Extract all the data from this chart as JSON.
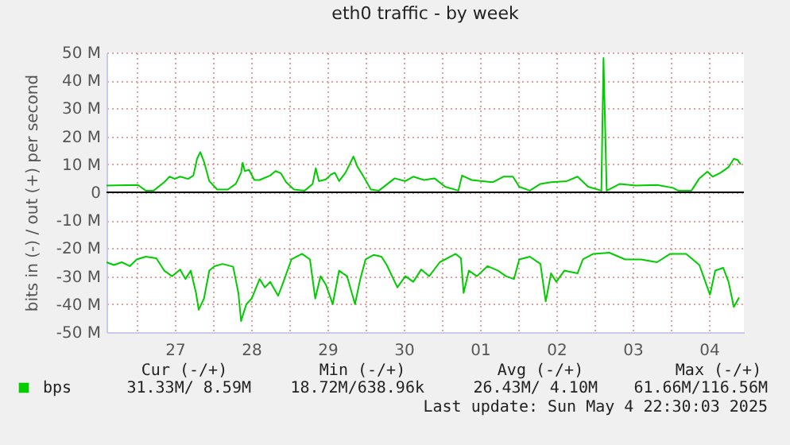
{
  "chart_data": {
    "type": "line",
    "title": "eth0 traffic - by week",
    "ylabel": "bits in (-) / out (+) per second",
    "xlim": [
      "2025-04-26T14:30",
      "2025-05-04T23:00"
    ],
    "xticks": [
      {
        "value": "2025-04-27",
        "label": null
      },
      {
        "value": "2025-04-27T12:00",
        "label": "27"
      },
      {
        "value": "2025-04-28",
        "label": null
      },
      {
        "value": "2025-04-28T12:00",
        "label": "28"
      },
      {
        "value": "2025-04-29",
        "label": null
      },
      {
        "value": "2025-04-29T12:00",
        "label": "29"
      },
      {
        "value": "2025-04-30",
        "label": null
      },
      {
        "value": "2025-04-30T12:00",
        "label": "30"
      },
      {
        "value": "2025-05-01",
        "label": null
      },
      {
        "value": "2025-05-01T12:00",
        "label": "01"
      },
      {
        "value": "2025-05-02",
        "label": null
      },
      {
        "value": "2025-05-02T12:00",
        "label": "02"
      },
      {
        "value": "2025-05-03",
        "label": null
      },
      {
        "value": "2025-05-03T12:00",
        "label": "03"
      },
      {
        "value": "2025-05-04",
        "label": null
      },
      {
        "value": "2025-05-04T12:00",
        "label": "04"
      }
    ],
    "ylim": [
      -50000000,
      50000000
    ],
    "yticks": [
      {
        "value": 50000000,
        "label": "50 M"
      },
      {
        "value": 40000000,
        "label": "40 M"
      },
      {
        "value": 30000000,
        "label": "30 M"
      },
      {
        "value": 20000000,
        "label": "20 M"
      },
      {
        "value": 10000000,
        "label": "10 M"
      },
      {
        "value": 0,
        "label": "0"
      },
      {
        "value": -10000000,
        "label": "-10 M"
      },
      {
        "value": -20000000,
        "label": "-20 M"
      },
      {
        "value": -30000000,
        "label": "-30 M"
      },
      {
        "value": -40000000,
        "label": "-40 M"
      },
      {
        "value": -50000000,
        "label": "-50 M"
      }
    ],
    "grid": true,
    "legend": "bottom left",
    "line_style": "solid",
    "ref_lines": [
      {
        "axis": "y",
        "value": 0,
        "color": "#000000"
      }
    ],
    "series": [
      {
        "name": "bps",
        "color": "#00cc00",
        "x": [
          "2025-04-26T14:30",
          "2025-04-27T00:20",
          "2025-04-27T01:10",
          "2025-04-27T02:50",
          "2025-04-27T05:20",
          "2025-04-27T08:40",
          "2025-04-27T10:20",
          "2025-04-27T12:00",
          "2025-04-27T13:40",
          "2025-04-27T16:10",
          "2025-04-27T17:50",
          "2025-04-27T19:00",
          "2025-04-27T20:00",
          "2025-04-27T21:10",
          "2025-04-27T22:50",
          "2025-04-28T01:20",
          "2025-04-28T04:40",
          "2025-04-28T07:10",
          "2025-04-28T08:50",
          "2025-04-28T09:20",
          "2025-04-28T10:00",
          "2025-04-28T11:20",
          "2025-04-28T13:00",
          "2025-04-28T14:40",
          "2025-04-28T18:00",
          "2025-04-28T19:40",
          "2025-04-28T21:20",
          "2025-04-28T23:00",
          "2025-04-29T01:30",
          "2025-04-29T04:50",
          "2025-04-29T07:20",
          "2025-04-29T08:20",
          "2025-04-29T09:20",
          "2025-04-29T11:30",
          "2025-04-29T13:10",
          "2025-04-29T14:20",
          "2025-04-29T15:40",
          "2025-04-29T17:40",
          "2025-04-29T19:00",
          "2025-04-29T20:10",
          "2025-04-29T21:30",
          "2025-04-29T23:10",
          "2025-04-30T01:40",
          "2025-04-30T04:10",
          "2025-04-30T09:10",
          "2025-04-30T12:30",
          "2025-04-30T15:00",
          "2025-04-30T18:20",
          "2025-04-30T21:40",
          "2025-05-01T01:00",
          "2025-05-01T05:10",
          "2025-05-01T06:20",
          "2025-05-01T09:20",
          "2025-05-01T12:40",
          "2025-05-01T16:00",
          "2025-05-01T19:20",
          "2025-05-01T22:20",
          "2025-05-02T00:20",
          "2025-05-02T03:40",
          "2025-05-02T07:00",
          "2025-05-02T10:20",
          "2025-05-02T15:20",
          "2025-05-02T18:40",
          "2025-05-02T22:00",
          "2025-05-03T02:10",
          "2025-05-03T02:50",
          "2025-05-03T03:50",
          "2025-05-03T08:00",
          "2025-05-03T13:00",
          "2025-05-03T19:40",
          "2025-05-04T00:40",
          "2025-05-04T02:20",
          "2025-05-04T06:30",
          "2025-05-04T09:00",
          "2025-05-04T11:30",
          "2025-05-04T13:10",
          "2025-05-04T15:40",
          "2025-05-04T18:10",
          "2025-05-04T19:50",
          "2025-05-04T21:00",
          "2025-05-04T22:00"
        ],
        "values": [
          2400000,
          2600000,
          2000000,
          600000,
          600000,
          3600000,
          5600000,
          4800000,
          5600000,
          4800000,
          6000000,
          12000000,
          14400000,
          11000000,
          4000000,
          1000000,
          1000000,
          3000000,
          7000000,
          10600000,
          7600000,
          8000000,
          4400000,
          4400000,
          6000000,
          7600000,
          6800000,
          3600000,
          1000000,
          600000,
          3000000,
          8600000,
          4000000,
          4600000,
          6400000,
          7000000,
          4000000,
          7000000,
          10000000,
          12800000,
          9000000,
          6000000,
          1000000,
          600000,
          5000000,
          4000000,
          5600000,
          4400000,
          5000000,
          2000000,
          600000,
          6000000,
          4400000,
          4000000,
          3600000,
          5600000,
          5600000,
          2000000,
          600000,
          3000000,
          3600000,
          4000000,
          5600000,
          2000000,
          600000,
          48000000,
          600000,
          3000000,
          2400000,
          2600000,
          1600000,
          600000,
          600000,
          5000000,
          7400000,
          5600000,
          7000000,
          9000000,
          12000000,
          11600000,
          10000000
        ]
      },
      {
        "color": "#00cc00",
        "x": [
          "2025-04-26T14:30",
          "2025-04-26T16:50",
          "2025-04-26T19:20",
          "2025-04-26T21:50",
          "2025-04-27T00:00",
          "2025-04-27T02:50",
          "2025-04-27T06:10",
          "2025-04-27T08:40",
          "2025-04-27T11:10",
          "2025-04-27T13:40",
          "2025-04-27T15:20",
          "2025-04-27T17:00",
          "2025-04-27T18:40",
          "2025-04-27T19:30",
          "2025-04-27T21:10",
          "2025-04-27T22:50",
          "2025-04-28T00:30",
          "2025-04-28T03:00",
          "2025-04-28T06:20",
          "2025-04-28T08:00",
          "2025-04-28T08:50",
          "2025-04-28T10:30",
          "2025-04-28T12:10",
          "2025-04-28T14:40",
          "2025-04-28T16:20",
          "2025-04-28T18:00",
          "2025-04-28T20:30",
          "2025-04-28T22:10",
          "2025-04-29T00:40",
          "2025-04-29T02:20",
          "2025-04-29T04:00",
          "2025-04-29T06:30",
          "2025-04-29T08:10",
          "2025-04-29T09:50",
          "2025-04-29T11:30",
          "2025-04-29T13:40",
          "2025-04-29T15:40",
          "2025-04-29T18:10",
          "2025-04-29T20:40",
          "2025-04-29T22:20",
          "2025-04-30T00:00",
          "2025-04-30T02:30",
          "2025-04-30T05:00",
          "2025-04-30T06:40",
          "2025-04-30T10:00",
          "2025-04-30T12:30",
          "2025-04-30T15:00",
          "2025-04-30T17:30",
          "2025-04-30T20:00",
          "2025-04-30T23:20",
          "2025-05-01T04:20",
          "2025-05-01T06:00",
          "2025-05-01T06:50",
          "2025-05-01T08:30",
          "2025-05-01T11:00",
          "2025-05-01T14:20",
          "2025-05-01T17:40",
          "2025-05-01T20:10",
          "2025-05-01T22:40",
          "2025-05-02T00:20",
          "2025-05-02T03:40",
          "2025-05-02T07:00",
          "2025-05-02T08:40",
          "2025-05-02T10:20",
          "2025-05-02T12:00",
          "2025-05-02T14:30",
          "2025-05-02T18:40",
          "2025-05-02T20:20",
          "2025-05-02T23:40",
          "2025-05-03T04:40",
          "2025-05-03T09:40",
          "2025-05-03T14:40",
          "2025-05-03T19:40",
          "2025-05-03T23:50",
          "2025-05-04T04:50",
          "2025-05-04T09:00",
          "2025-05-04T12:20",
          "2025-05-04T14:00",
          "2025-05-04T16:30",
          "2025-05-04T18:10",
          "2025-05-04T19:50",
          "2025-05-04T21:30"
        ],
        "values": [
          -25000000,
          -26000000,
          -25000000,
          -26400000,
          -24000000,
          -23000000,
          -23600000,
          -28000000,
          -30000000,
          -27600000,
          -31000000,
          -28000000,
          -36000000,
          -42000000,
          -38000000,
          -28000000,
          -26400000,
          -25600000,
          -26600000,
          -36000000,
          -46000000,
          -40000000,
          -38000000,
          -31000000,
          -34000000,
          -32000000,
          -37000000,
          -32000000,
          -24000000,
          -23000000,
          -22000000,
          -24000000,
          -38000000,
          -30000000,
          -33000000,
          -40000000,
          -28000000,
          -30000000,
          -40000000,
          -31000000,
          -24000000,
          -22400000,
          -23000000,
          -26000000,
          -34000000,
          -30000000,
          -32000000,
          -27600000,
          -30000000,
          -25000000,
          -22000000,
          -23600000,
          -36000000,
          -28000000,
          -30000000,
          -26400000,
          -28000000,
          -30000000,
          -31000000,
          -24000000,
          -23000000,
          -25600000,
          -39000000,
          -29000000,
          -32000000,
          -28000000,
          -29000000,
          -24000000,
          -22000000,
          -21600000,
          -24000000,
          -24000000,
          -25000000,
          -22000000,
          -22000000,
          -26000000,
          -36600000,
          -28000000,
          -27000000,
          -32000000,
          -41000000,
          -37600000
        ]
      }
    ],
    "annotations": [
      "Cur (-/+)",
      "Min (-/+)",
      "Avg (-/+)",
      "Max (-/+)",
      "31.33M/   8.59M",
      "18.72M/638.96k",
      "26.43M/   4.10M",
      "61.66M/116.56M",
      "Last update: Sun May  4 22:30:03 2025"
    ]
  }
}
